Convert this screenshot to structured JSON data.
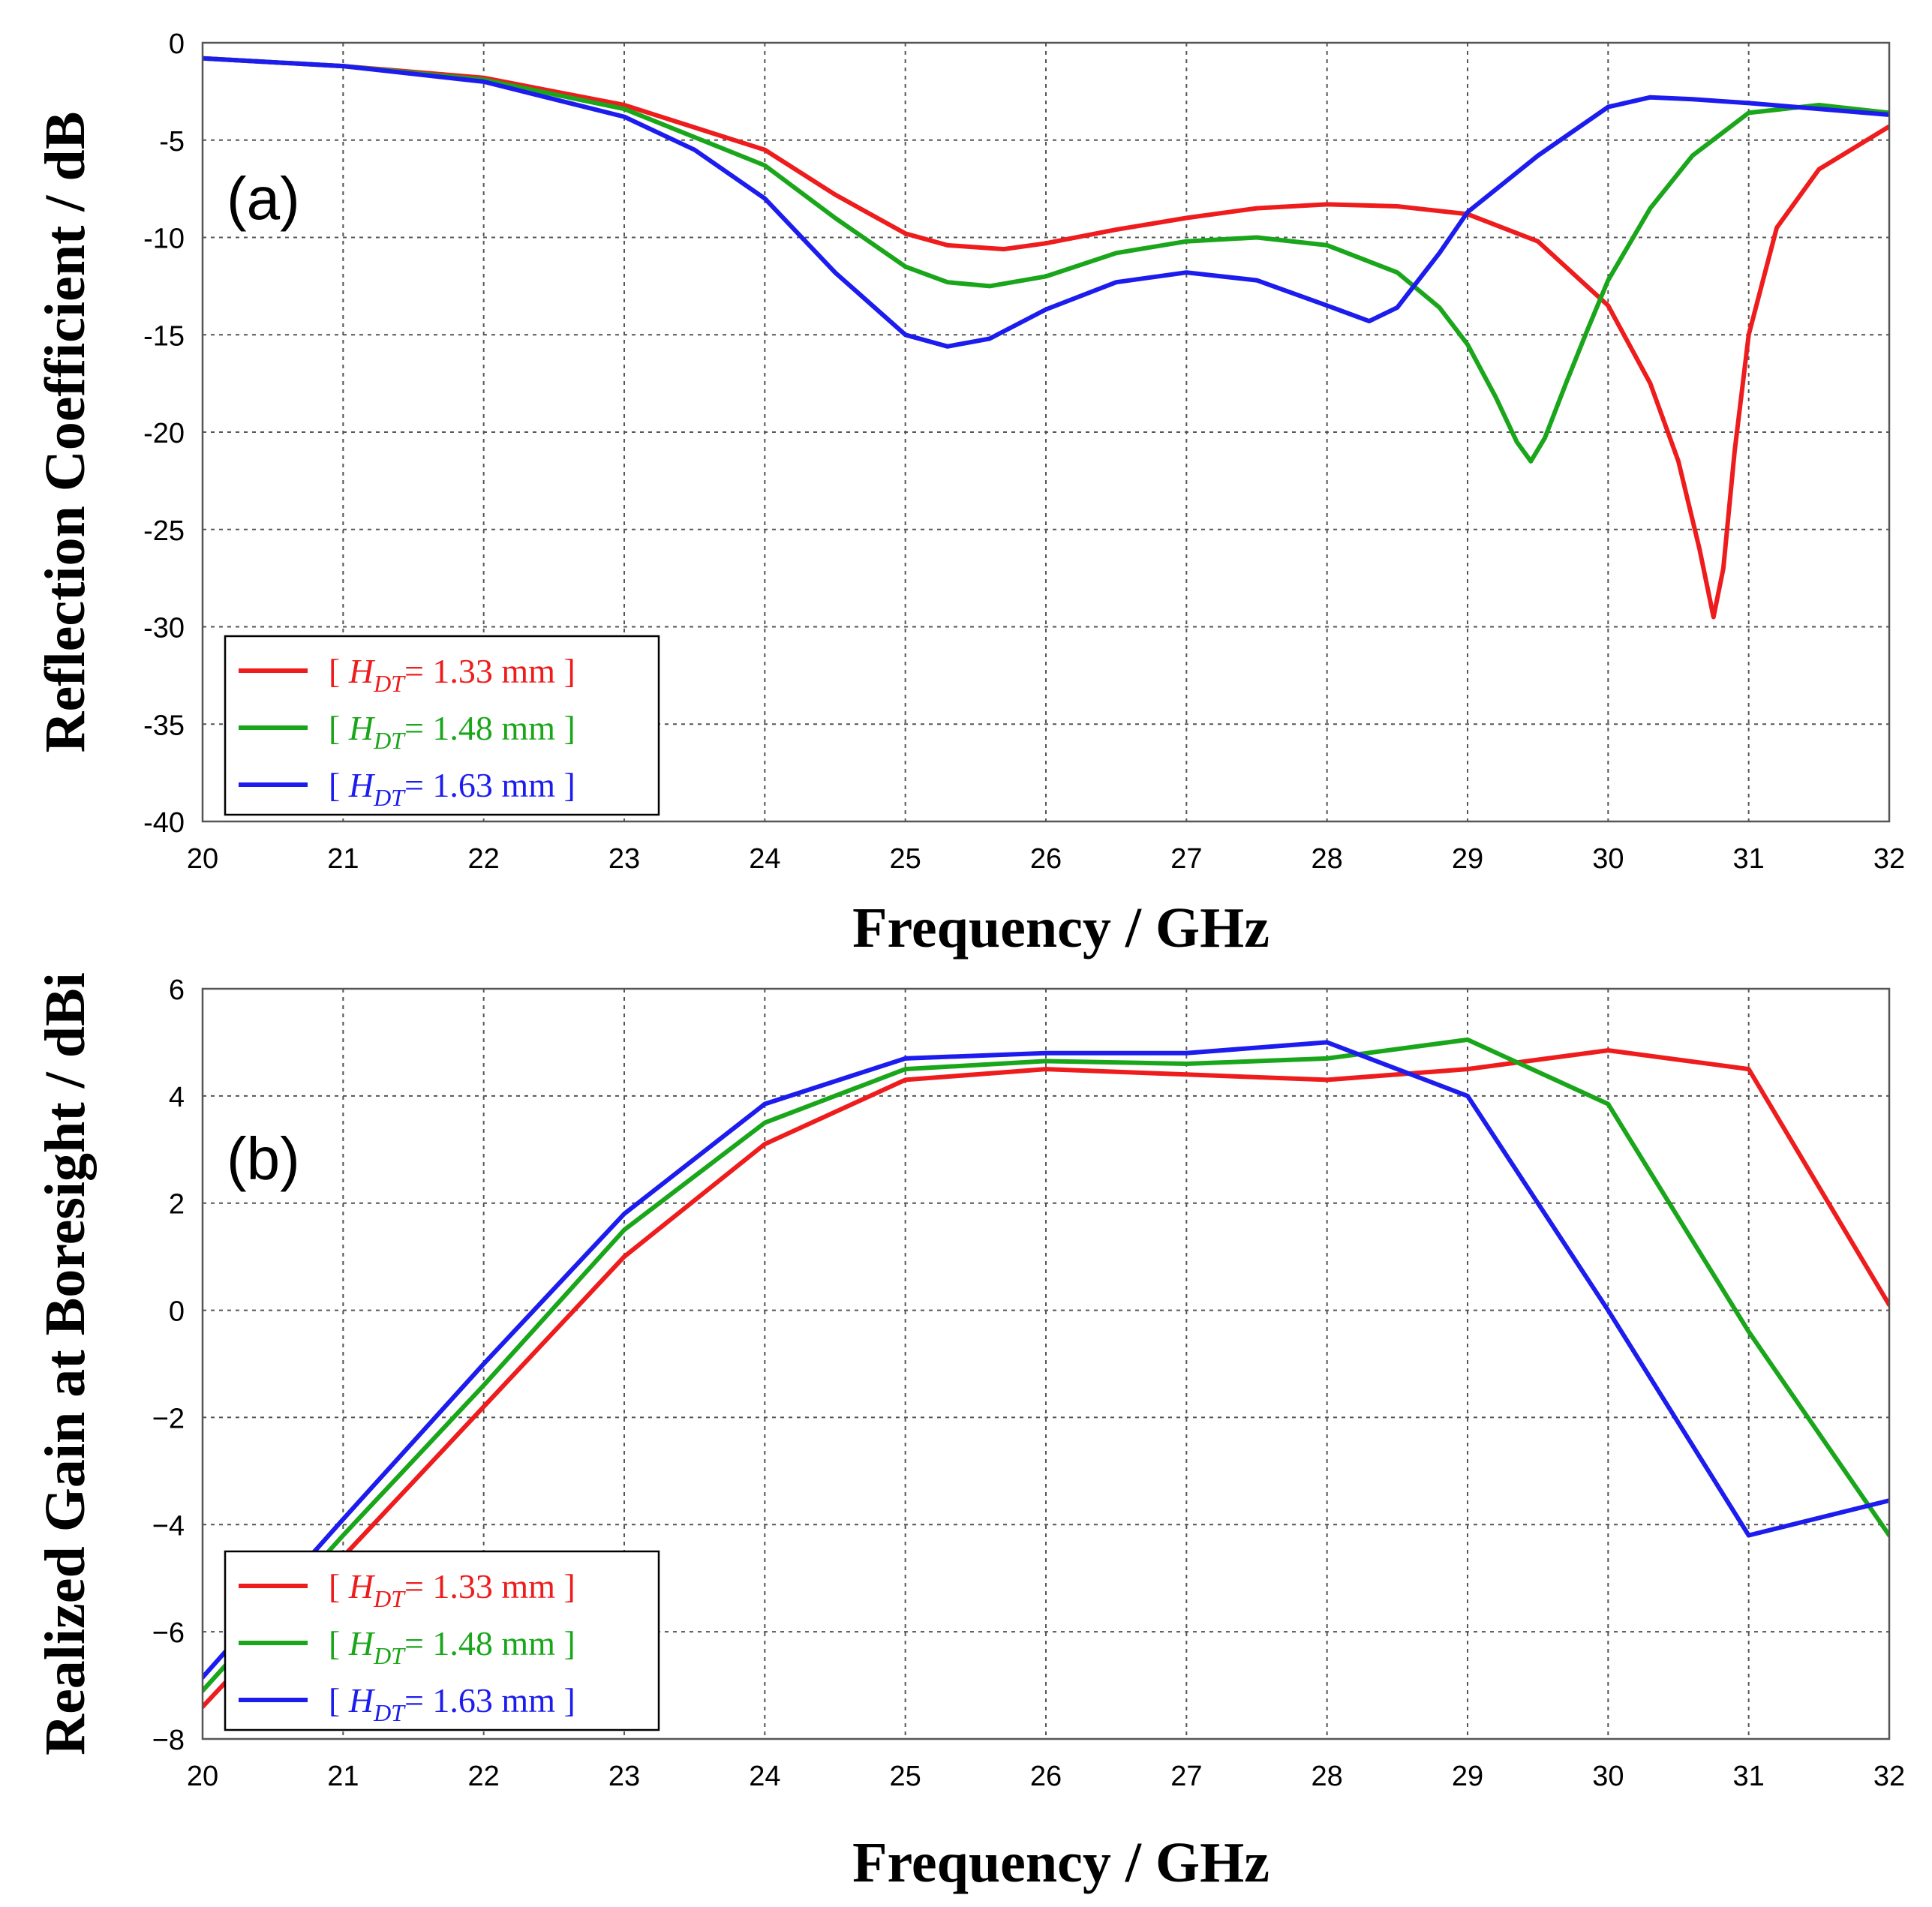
{
  "chart_data": [
    {
      "type": "line",
      "panel_label": "(a)",
      "xlabel": "Frequency / GHz",
      "ylabel": "Reflection Coefficient / dB",
      "xlim": [
        20,
        32
      ],
      "ylim": [
        -40,
        0
      ],
      "xticks": [
        "20",
        "21",
        "22",
        "23",
        "24",
        "25",
        "26",
        "27",
        "28",
        "29",
        "30",
        "31",
        "32"
      ],
      "yticks": [
        "0",
        "-5",
        "-10",
        "-15",
        "-20",
        "-25",
        "-30",
        "-35",
        "-40"
      ],
      "grid": true,
      "legend_position": "bottom-left",
      "series": [
        {
          "legend_prefix": "[ ",
          "legend_symbol": "H",
          "legend_subscript": "DT",
          "legend_value": "= 1.33 mm ]",
          "color": "#ee1c1c",
          "x": [
            20,
            21,
            22,
            23,
            24,
            24.5,
            25,
            25.3,
            25.7,
            26,
            26.5,
            27,
            27.5,
            28,
            28.5,
            29,
            29.5,
            30,
            30.3,
            30.5,
            30.65,
            30.75,
            30.82,
            30.9,
            31,
            31.2,
            31.5,
            32
          ],
          "y": [
            -0.8,
            -1.2,
            -1.8,
            -3.2,
            -5.5,
            -7.8,
            -9.8,
            -10.4,
            -10.6,
            -10.3,
            -9.6,
            -9.0,
            -8.5,
            -8.3,
            -8.4,
            -8.8,
            -10.2,
            -13.5,
            -17.5,
            -21.5,
            -26.0,
            -29.5,
            -27.0,
            -21.0,
            -15.0,
            -9.5,
            -6.5,
            -4.3
          ]
        },
        {
          "legend_prefix": "[ ",
          "legend_symbol": "H",
          "legend_subscript": "DT",
          "legend_value": "= 1.48 mm ]",
          "color": "#1aa61a",
          "x": [
            20,
            21,
            22,
            23,
            24,
            24.5,
            25,
            25.3,
            25.6,
            26,
            26.5,
            27,
            27.5,
            28,
            28.5,
            28.8,
            29,
            29.2,
            29.35,
            29.45,
            29.55,
            29.7,
            29.85,
            30,
            30.3,
            30.6,
            31,
            31.5,
            32
          ],
          "y": [
            -0.8,
            -1.2,
            -1.9,
            -3.4,
            -6.3,
            -9.0,
            -11.5,
            -12.3,
            -12.5,
            -12.0,
            -10.8,
            -10.2,
            -10.0,
            -10.4,
            -11.8,
            -13.6,
            -15.5,
            -18.2,
            -20.5,
            -21.5,
            -20.3,
            -17.5,
            -14.8,
            -12.2,
            -8.5,
            -5.8,
            -3.6,
            -3.2,
            -3.6
          ]
        },
        {
          "legend_prefix": "[ ",
          "legend_symbol": "H",
          "legend_subscript": "DT",
          "legend_value": "= 1.63 mm ]",
          "color": "#1c1cee",
          "x": [
            20,
            21,
            22,
            23,
            23.5,
            24,
            24.5,
            25,
            25.3,
            25.6,
            26,
            26.5,
            27,
            27.5,
            28,
            28.3,
            28.5,
            28.8,
            29,
            29.5,
            30,
            30.3,
            30.6,
            31,
            32
          ],
          "y": [
            -0.8,
            -1.2,
            -2.0,
            -3.8,
            -5.5,
            -8.0,
            -11.8,
            -15.0,
            -15.6,
            -15.2,
            -13.7,
            -12.3,
            -11.8,
            -12.2,
            -13.5,
            -14.3,
            -13.6,
            -10.8,
            -8.7,
            -5.8,
            -3.3,
            -2.8,
            -2.9,
            -3.1,
            -3.7
          ]
        }
      ]
    },
    {
      "type": "line",
      "panel_label": "(b)",
      "xlabel": "Frequency / GHz",
      "ylabel": "Realized Gain at Boresight / dBi",
      "xlim": [
        20,
        32
      ],
      "ylim": [
        -8,
        6
      ],
      "xticks": [
        "20",
        "21",
        "22",
        "23",
        "24",
        "25",
        "26",
        "27",
        "28",
        "29",
        "30",
        "31",
        "32"
      ],
      "yticks": [
        "6",
        "4",
        "2",
        "0",
        "−2",
        "−4",
        "−6",
        "−8"
      ],
      "grid": true,
      "legend_position": "bottom-left",
      "series": [
        {
          "legend_prefix": "[ ",
          "legend_symbol": "H",
          "legend_subscript": "DT",
          "legend_value": "= 1.33 mm ]",
          "color": "#ee1c1c",
          "x": [
            20,
            21,
            22,
            23,
            24,
            25,
            26,
            27,
            28,
            29,
            30,
            31,
            32
          ],
          "y": [
            -7.4,
            -4.6,
            -1.8,
            1.0,
            3.1,
            4.3,
            4.5,
            4.4,
            4.3,
            4.5,
            4.85,
            4.5,
            0.1
          ]
        },
        {
          "legend_prefix": "[ ",
          "legend_symbol": "H",
          "legend_subscript": "DT",
          "legend_value": "= 1.48 mm ]",
          "color": "#1aa61a",
          "x": [
            20,
            21,
            22,
            23,
            24,
            25,
            26,
            27,
            28,
            29,
            30,
            31,
            32
          ],
          "y": [
            -7.1,
            -4.2,
            -1.4,
            1.5,
            3.5,
            4.5,
            4.65,
            4.6,
            4.7,
            5.05,
            3.85,
            -0.4,
            -4.2
          ]
        },
        {
          "legend_prefix": "[ ",
          "legend_symbol": "H",
          "legend_subscript": "DT",
          "legend_value": "= 1.63 mm ]",
          "color": "#1c1cee",
          "x": [
            20,
            21,
            22,
            23,
            24,
            25,
            26,
            27,
            28,
            29,
            30,
            31,
            32
          ],
          "y": [
            -6.85,
            -3.9,
            -1.0,
            1.8,
            3.85,
            4.7,
            4.8,
            4.8,
            5.0,
            4.0,
            0.0,
            -4.2,
            -3.55
          ]
        }
      ]
    }
  ]
}
